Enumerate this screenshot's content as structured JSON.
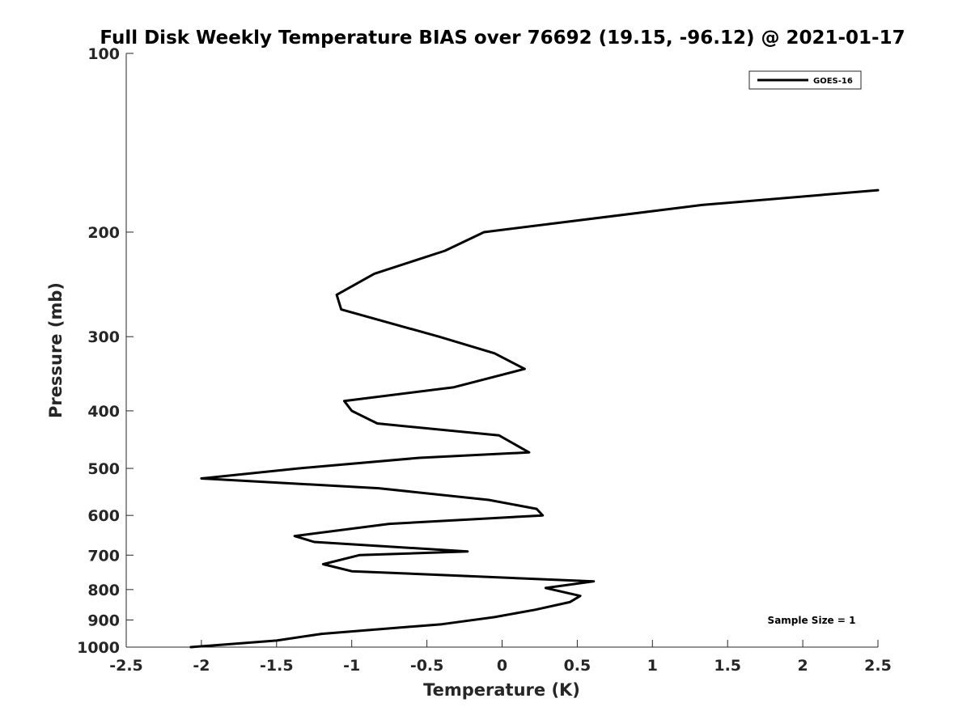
{
  "chart_data": {
    "type": "line",
    "title": "Full Disk Weekly Temperature BIAS over 76692 (19.15, -96.12) @ 2021-01-17",
    "xlabel": "Temperature (K)",
    "ylabel": "Pressure (mb)",
    "xlim": [
      -2.5,
      2.5
    ],
    "ylim": [
      1000,
      100
    ],
    "yscale": "log",
    "y_reversed": true,
    "xticks": [
      -2.5,
      -2,
      -1.5,
      -1,
      -0.5,
      0,
      0.5,
      1,
      1.5,
      2,
      2.5
    ],
    "xtick_labels": [
      "-2.5",
      "-2",
      "-1.5",
      "-1",
      "-0.5",
      "0",
      "0.5",
      "1",
      "1.5",
      "2",
      "2.5"
    ],
    "yticks": [
      100,
      200,
      300,
      400,
      500,
      600,
      700,
      800,
      900,
      1000
    ],
    "ytick_labels": [
      "100",
      "200",
      "300",
      "400",
      "500",
      "600",
      "700",
      "800",
      "900",
      "1000"
    ],
    "grid": false,
    "legend_position": "top-right",
    "series": [
      {
        "name": "GOES-16",
        "color": "#000000",
        "x": [
          2.5,
          1.33,
          -0.12,
          -0.38,
          -0.85,
          -1.1,
          -1.07,
          -0.42,
          -0.05,
          0.15,
          -0.32,
          -1.05,
          -1.0,
          -0.83,
          -0.02,
          0.18,
          -0.55,
          -1.35,
          -2.0,
          -0.82,
          -0.09,
          0.23,
          0.27,
          -0.75,
          -1.38,
          -1.25,
          -0.23,
          -0.95,
          -1.19,
          -1.0,
          0.61,
          0.29,
          0.52,
          0.45,
          0.22,
          -0.05,
          -0.4,
          -1.2,
          -1.5,
          -2.07
        ],
        "y": [
          170,
          180,
          200,
          215,
          235,
          255,
          270,
          300,
          320,
          340,
          365,
          385,
          400,
          420,
          440,
          470,
          480,
          500,
          520,
          540,
          565,
          585,
          600,
          620,
          650,
          665,
          690,
          700,
          725,
          745,
          775,
          795,
          820,
          840,
          865,
          890,
          915,
          950,
          975,
          1000
        ]
      }
    ],
    "annotation": "Sample Size = 1"
  }
}
